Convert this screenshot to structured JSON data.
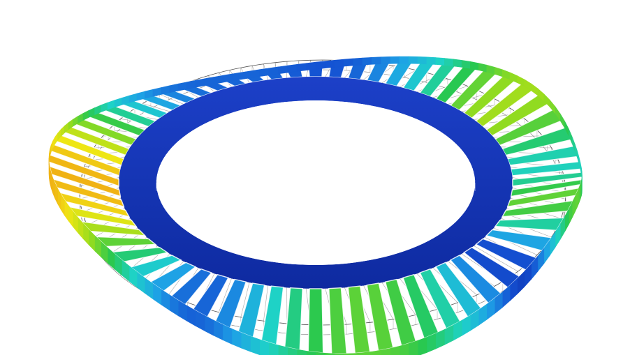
{
  "scene": {
    "subject": "deformed-bladed-disk-mode-shape",
    "background_color": "#ffffff",
    "blade_count": 64,
    "colormap": [
      "#0a1e96",
      "#1450d2",
      "#1ea0e6",
      "#1ed2c8",
      "#28c850",
      "#96dc1e",
      "#f0e614",
      "#f09614",
      "#e63214",
      "#c81414"
    ],
    "hub_color": "#1432b4",
    "undeformed_wireframe_color": "#888888"
  }
}
